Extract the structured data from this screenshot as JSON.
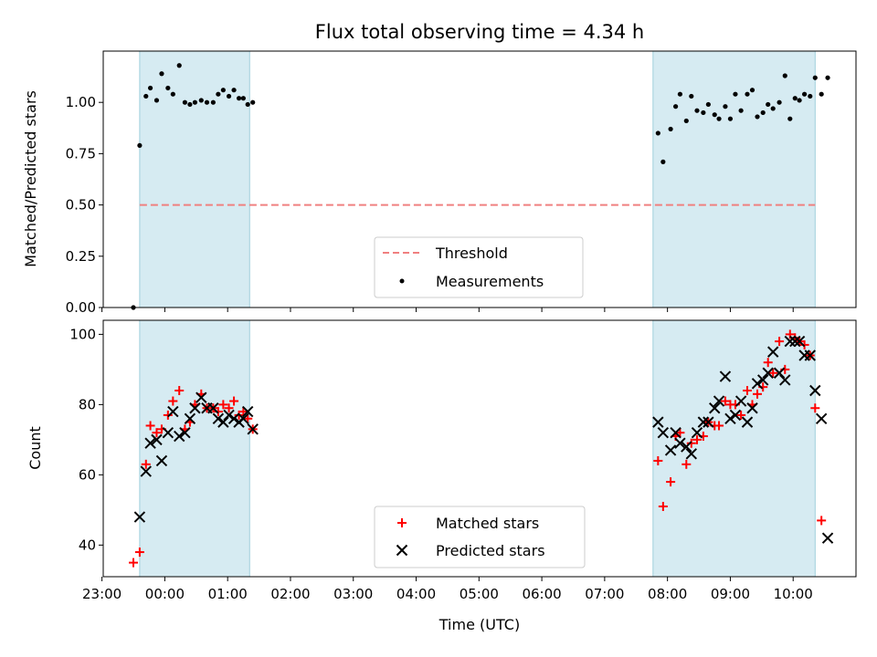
{
  "chart_data": [
    {
      "type": "scatter",
      "title": "Flux total observing time = 4.34 h",
      "xlabel": "",
      "ylabel": "Matched/Predicted stars",
      "xlim": [
        -0.98,
        11.0
      ],
      "ylim": [
        0,
        1.25
      ],
      "yticks": [
        0.0,
        0.25,
        0.5,
        0.75,
        1.0
      ],
      "ytick_labels": [
        "0.00",
        "0.25",
        "0.50",
        "0.75",
        "1.00"
      ],
      "shaded_spans": [
        [
          -0.4,
          1.35
        ],
        [
          7.77,
          10.35
        ]
      ],
      "threshold": {
        "name": "Threshold",
        "value": 0.5,
        "x_range": [
          -0.4,
          10.35
        ],
        "color": "#f08080"
      },
      "series": [
        {
          "name": "Measurements",
          "marker": "dot",
          "color": "#000000",
          "points": [
            [
              -0.5,
              0.0
            ],
            [
              -0.4,
              0.79
            ],
            [
              -0.3,
              1.03
            ],
            [
              -0.23,
              1.07
            ],
            [
              -0.13,
              1.01
            ],
            [
              -0.05,
              1.14
            ],
            [
              0.05,
              1.07
            ],
            [
              0.13,
              1.04
            ],
            [
              0.23,
              1.18
            ],
            [
              0.32,
              1.0
            ],
            [
              0.4,
              0.99
            ],
            [
              0.48,
              1.0
            ],
            [
              0.58,
              1.01
            ],
            [
              0.67,
              1.0
            ],
            [
              0.77,
              1.0
            ],
            [
              0.85,
              1.04
            ],
            [
              0.93,
              1.06
            ],
            [
              1.02,
              1.03
            ],
            [
              1.1,
              1.06
            ],
            [
              1.18,
              1.02
            ],
            [
              1.25,
              1.02
            ],
            [
              1.32,
              0.99
            ],
            [
              1.4,
              1.0
            ],
            [
              7.85,
              0.85
            ],
            [
              7.93,
              0.71
            ],
            [
              8.05,
              0.87
            ],
            [
              8.13,
              0.98
            ],
            [
              8.2,
              1.04
            ],
            [
              8.3,
              0.91
            ],
            [
              8.38,
              1.03
            ],
            [
              8.47,
              0.96
            ],
            [
              8.57,
              0.95
            ],
            [
              8.65,
              0.99
            ],
            [
              8.75,
              0.94
            ],
            [
              8.82,
              0.92
            ],
            [
              8.92,
              0.98
            ],
            [
              9.0,
              0.92
            ],
            [
              9.08,
              1.04
            ],
            [
              9.17,
              0.96
            ],
            [
              9.27,
              1.04
            ],
            [
              9.35,
              1.06
            ],
            [
              9.43,
              0.93
            ],
            [
              9.52,
              0.95
            ],
            [
              9.6,
              0.99
            ],
            [
              9.68,
              0.97
            ],
            [
              9.78,
              1.0
            ],
            [
              9.87,
              1.13
            ],
            [
              9.95,
              0.92
            ],
            [
              10.03,
              1.02
            ],
            [
              10.1,
              1.01
            ],
            [
              10.18,
              1.04
            ],
            [
              10.27,
              1.03
            ],
            [
              10.35,
              1.12
            ],
            [
              10.45,
              1.04
            ],
            [
              10.55,
              1.12
            ]
          ]
        }
      ],
      "legend": {
        "position": "lower-center",
        "entries": [
          "Threshold",
          "Measurements"
        ]
      }
    },
    {
      "type": "scatter",
      "title": "",
      "xlabel": "Time (UTC)",
      "ylabel": "Count",
      "xlim": [
        -0.98,
        11.0
      ],
      "ylim": [
        31,
        104
      ],
      "yticks": [
        40,
        60,
        80,
        100
      ],
      "ytick_labels": [
        "40",
        "60",
        "80",
        "100"
      ],
      "xticks": [
        -1,
        0,
        1,
        2,
        3,
        4,
        5,
        6,
        7,
        8,
        9,
        10
      ],
      "xtick_labels": [
        "23:00",
        "00:00",
        "01:00",
        "02:00",
        "03:00",
        "04:00",
        "05:00",
        "06:00",
        "07:00",
        "08:00",
        "09:00",
        "10:00"
      ],
      "shaded_spans": [
        [
          -0.4,
          1.35
        ],
        [
          7.77,
          10.35
        ]
      ],
      "series": [
        {
          "name": "Matched stars",
          "marker": "plus",
          "color": "#ff0000",
          "points": [
            [
              -0.5,
              35
            ],
            [
              -0.4,
              38
            ],
            [
              -0.3,
              63
            ],
            [
              -0.23,
              74
            ],
            [
              -0.13,
              72
            ],
            [
              -0.05,
              73
            ],
            [
              0.05,
              77
            ],
            [
              0.13,
              81
            ],
            [
              0.23,
              84
            ],
            [
              0.32,
              73
            ],
            [
              0.4,
              75
            ],
            [
              0.48,
              80
            ],
            [
              0.58,
              83
            ],
            [
              0.67,
              79
            ],
            [
              0.77,
              79
            ],
            [
              0.85,
              78
            ],
            [
              0.93,
              80
            ],
            [
              1.02,
              79
            ],
            [
              1.1,
              81
            ],
            [
              1.18,
              77
            ],
            [
              1.25,
              78
            ],
            [
              1.32,
              76
            ],
            [
              1.4,
              73
            ],
            [
              7.85,
              64
            ],
            [
              7.93,
              51
            ],
            [
              8.05,
              58
            ],
            [
              8.13,
              71
            ],
            [
              8.2,
              72
            ],
            [
              8.3,
              63
            ],
            [
              8.38,
              69
            ],
            [
              8.47,
              70
            ],
            [
              8.57,
              71
            ],
            [
              8.65,
              75
            ],
            [
              8.75,
              74
            ],
            [
              8.82,
              74
            ],
            [
              8.92,
              81
            ],
            [
              9.0,
              80
            ],
            [
              9.08,
              80
            ],
            [
              9.17,
              77
            ],
            [
              9.27,
              84
            ],
            [
              9.35,
              80
            ],
            [
              9.43,
              83
            ],
            [
              9.52,
              85
            ],
            [
              9.6,
              92
            ],
            [
              9.68,
              89
            ],
            [
              9.78,
              98
            ],
            [
              9.87,
              90
            ],
            [
              9.95,
              100
            ],
            [
              10.03,
              99
            ],
            [
              10.1,
              98
            ],
            [
              10.18,
              97
            ],
            [
              10.27,
              94
            ],
            [
              10.35,
              79
            ],
            [
              10.45,
              47
            ]
          ]
        },
        {
          "name": "Predicted stars",
          "marker": "x",
          "color": "#000000",
          "points": [
            [
              -0.4,
              48
            ],
            [
              -0.3,
              61
            ],
            [
              -0.23,
              69
            ],
            [
              -0.13,
              70
            ],
            [
              -0.05,
              64
            ],
            [
              0.05,
              72
            ],
            [
              0.13,
              78
            ],
            [
              0.23,
              71
            ],
            [
              0.32,
              72
            ],
            [
              0.4,
              76
            ],
            [
              0.48,
              79
            ],
            [
              0.58,
              82
            ],
            [
              0.67,
              79
            ],
            [
              0.77,
              79
            ],
            [
              0.85,
              76
            ],
            [
              0.93,
              75
            ],
            [
              1.02,
              77
            ],
            [
              1.1,
              76
            ],
            [
              1.18,
              75
            ],
            [
              1.25,
              76
            ],
            [
              1.32,
              78
            ],
            [
              1.4,
              73
            ],
            [
              7.85,
              75
            ],
            [
              7.93,
              72
            ],
            [
              8.05,
              67
            ],
            [
              8.13,
              72
            ],
            [
              8.2,
              69
            ],
            [
              8.3,
              68
            ],
            [
              8.38,
              66
            ],
            [
              8.47,
              72
            ],
            [
              8.57,
              75
            ],
            [
              8.65,
              75
            ],
            [
              8.75,
              79
            ],
            [
              8.82,
              81
            ],
            [
              8.92,
              88
            ],
            [
              9.0,
              76
            ],
            [
              9.08,
              77
            ],
            [
              9.17,
              81
            ],
            [
              9.27,
              75
            ],
            [
              9.35,
              79
            ],
            [
              9.43,
              86
            ],
            [
              9.52,
              87
            ],
            [
              9.6,
              89
            ],
            [
              9.68,
              95
            ],
            [
              9.78,
              89
            ],
            [
              9.87,
              87
            ],
            [
              9.95,
              98
            ],
            [
              10.03,
              98
            ],
            [
              10.1,
              98
            ],
            [
              10.18,
              94
            ],
            [
              10.27,
              94
            ],
            [
              10.35,
              84
            ],
            [
              10.45,
              76
            ],
            [
              10.55,
              42
            ]
          ]
        }
      ],
      "legend": {
        "position": "lower-center",
        "entries": [
          "Matched stars",
          "Predicted stars"
        ]
      }
    }
  ]
}
